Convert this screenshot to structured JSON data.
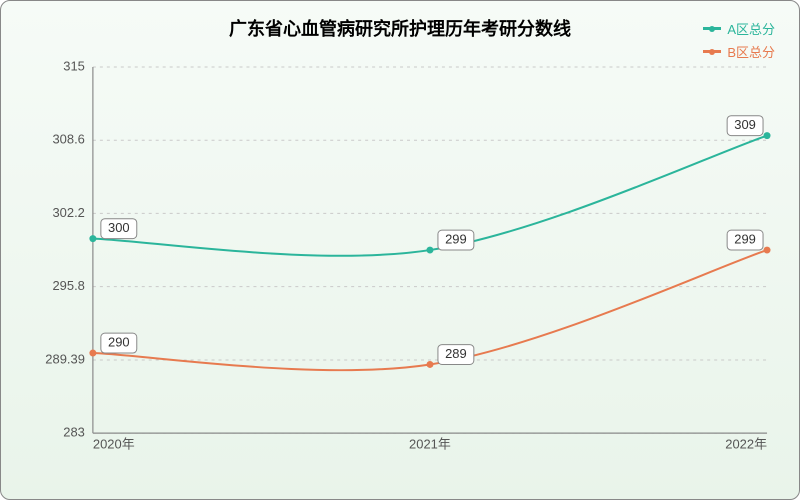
{
  "chart": {
    "title": "广东省心血管病研究所护理历年考研分数线",
    "title_fontsize": 18,
    "title_color": "#000000",
    "background": "linear-gradient(to bottom, #f6fbf7, #e9f4ea)",
    "plot_bg": "transparent",
    "border_color": "#888888",
    "type": "line",
    "x": {
      "categories": [
        "2020年",
        "2021年",
        "2022年"
      ],
      "label_fontsize": 13,
      "label_color": "#555555",
      "axis_color": "#8a8a8a"
    },
    "y": {
      "min": 283,
      "max": 315,
      "ticks": [
        283,
        289.39,
        295.8,
        302.2,
        308.6,
        315
      ],
      "tick_labels": [
        "283",
        "289.39",
        "295.8",
        "302.2",
        "308.6",
        "315"
      ],
      "grid_color": "#c9c9c9",
      "grid_dash": "3,4",
      "label_fontsize": 13,
      "label_color": "#555555"
    },
    "series": [
      {
        "name": "A区总分",
        "color": "#2bb59b",
        "marker_color": "#2bb59b",
        "values": [
          300,
          299,
          309
        ],
        "labels": [
          "300",
          "299",
          "309"
        ]
      },
      {
        "name": "B区总分",
        "color": "#e77a4f",
        "marker_color": "#e77a4f",
        "values": [
          290,
          289,
          299
        ],
        "labels": [
          "290",
          "289",
          "299"
        ]
      }
    ],
    "data_label_fontsize": 13,
    "data_label_bg": "#ffffff",
    "data_label_border": "#888888",
    "legend_fontsize": 13,
    "smooth": true
  }
}
